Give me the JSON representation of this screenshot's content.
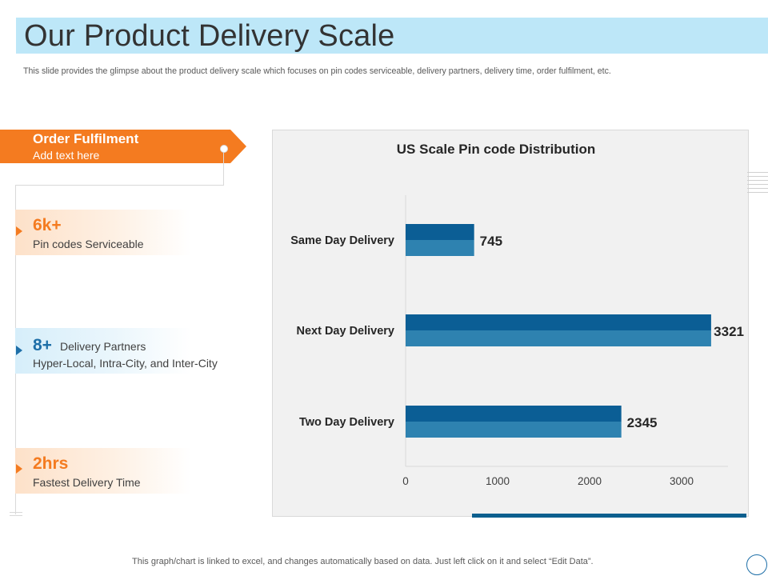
{
  "slide": {
    "title": "Our Product Delivery Scale",
    "subtitle": "This slide provides the glimpse about the product delivery scale which focuses on pin codes serviceable, delivery partners, delivery time, order fulfilment, etc.",
    "footer": "This graph/chart is linked to excel,  and changes automatically based on data. Just left click on it and select “Edit Data”."
  },
  "banner": {
    "title": "Order Fulfilment",
    "subtitle": "Add text here"
  },
  "stats": [
    {
      "value": "6k+",
      "label": "Pin codes Serviceable"
    },
    {
      "value": "8+",
      "label_inline": "Delivery Partners",
      "label": "Hyper-Local, Intra-City, and Inter-City"
    },
    {
      "value": "2hrs",
      "label": "Fastest Delivery Time"
    }
  ],
  "colors": {
    "accent_orange": "#f47b20",
    "accent_blue": "#1e6fa8",
    "bar_top": "#0b5e95",
    "bar_bottom": "#2e82b0",
    "title_band": "#bde7f8"
  },
  "chart_data": {
    "type": "bar",
    "orientation": "horizontal",
    "title": "US Scale Pin code Distribution",
    "categories": [
      "Same Day Delivery",
      "Next Day Delivery",
      "Two Day Delivery"
    ],
    "values": [
      745,
      3321,
      2345
    ],
    "x_ticks": [
      0,
      1000,
      2000,
      3000
    ],
    "xlim": [
      0,
      3500
    ],
    "xlabel": "",
    "ylabel": ""
  }
}
